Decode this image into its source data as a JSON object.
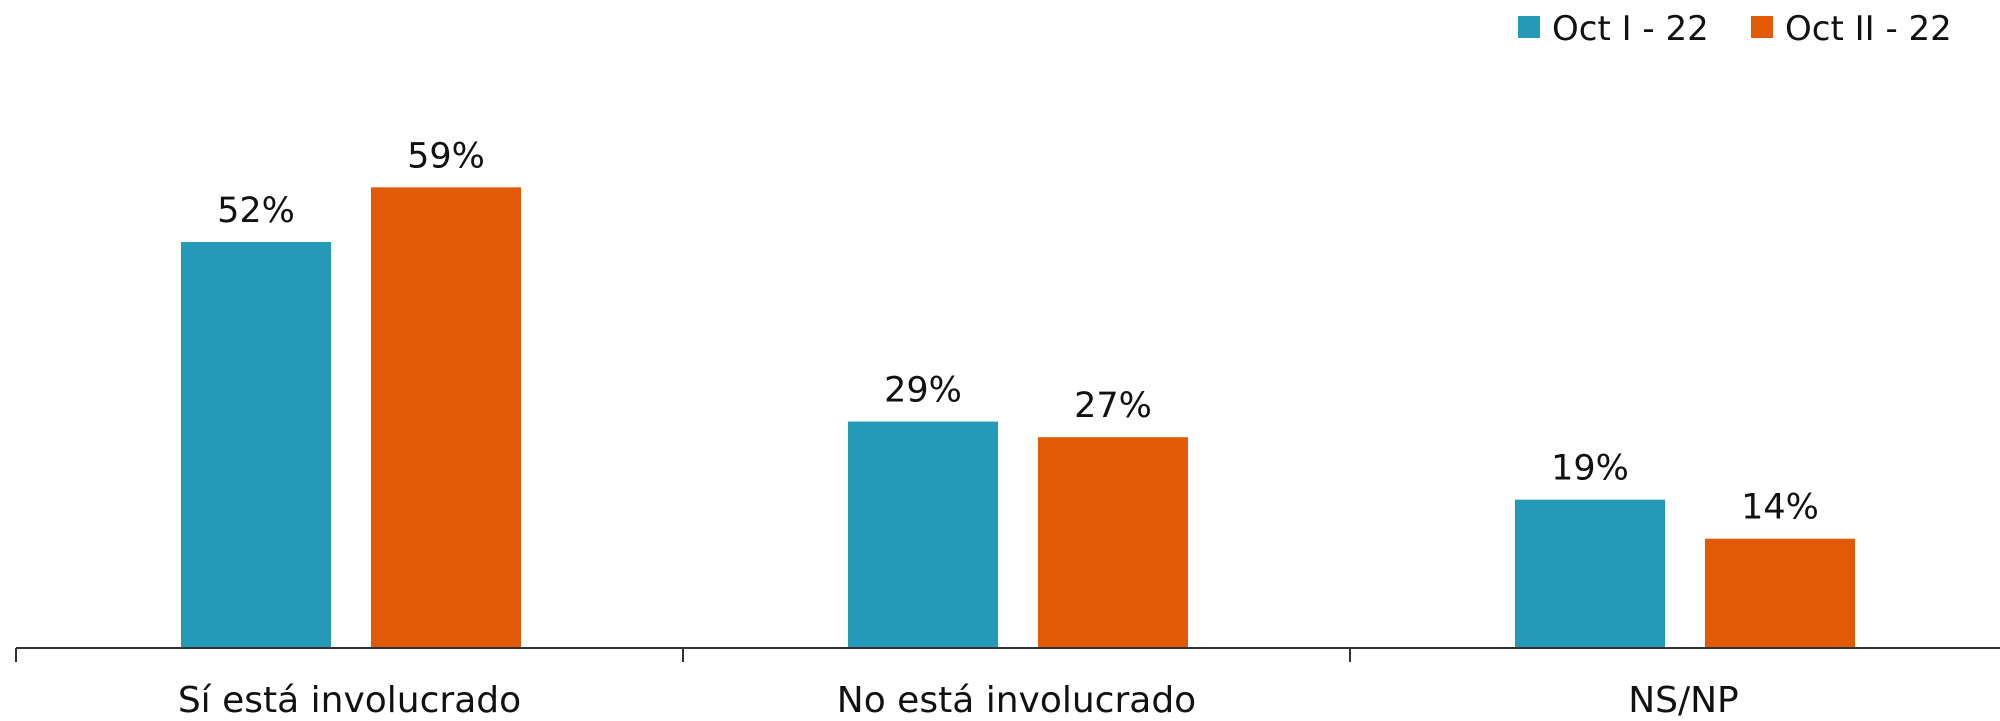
{
  "chart_data": {
    "type": "bar",
    "title": "",
    "xlabel": "",
    "ylabel": "",
    "categories": [
      "Sí está involucrado",
      "No está involucrado",
      "NS/NP"
    ],
    "series": [
      {
        "name": "Oct I - 22",
        "color": "#259ab8",
        "values": [
          52,
          29,
          19
        ],
        "labels": [
          "52%",
          "29%",
          "19%"
        ]
      },
      {
        "name": "Oct II - 22",
        "color": "#e35a06",
        "values": [
          59,
          27,
          14
        ],
        "labels": [
          "59%",
          "27%",
          "14%"
        ]
      }
    ],
    "ylim": [
      0,
      70
    ],
    "grid": false,
    "legend_position": "top-right",
    "axis_color": "#333333"
  }
}
